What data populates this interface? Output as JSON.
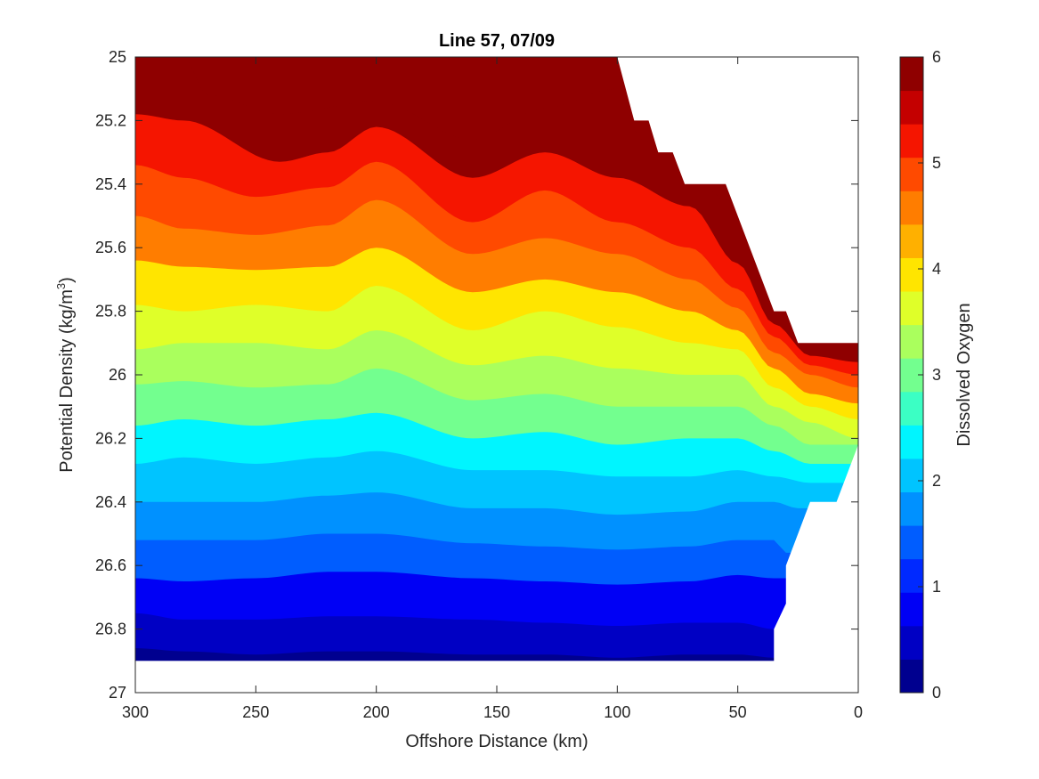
{
  "chart_data": {
    "type": "contourf",
    "title": "Line 57, 07/09",
    "xlabel": "Offshore Distance (km)",
    "ylabel_main": "Potential Density (kg/m",
    "ylabel_sup": "3",
    "ylabel_close": ")",
    "colorbar_label": "Dissolved Oxygen",
    "xlim": [
      300,
      0
    ],
    "x_reversed": true,
    "ylim": [
      25,
      27
    ],
    "y_reversed": true,
    "xticks": [
      300,
      250,
      200,
      150,
      100,
      50,
      0
    ],
    "xtick_labels": [
      "300",
      "250",
      "200",
      "150",
      "100",
      "50",
      "0"
    ],
    "yticks": [
      25,
      25.2,
      25.4,
      25.6,
      25.8,
      26,
      26.2,
      26.4,
      26.6,
      26.8,
      27
    ],
    "ytick_labels": [
      "25",
      "25.2",
      "25.4",
      "25.6",
      "25.8",
      "26",
      "26.2",
      "26.4",
      "26.6",
      "26.8",
      "27"
    ],
    "colorbar_range": [
      0,
      6
    ],
    "colorbar_ticks": [
      0,
      1,
      2,
      3,
      4,
      5,
      6
    ],
    "colorbar_tick_labels": [
      "0",
      "1",
      "2",
      "3",
      "4",
      "5",
      "6"
    ],
    "level_step": 0.4,
    "colormap": [
      "#00008f",
      "#0000c4",
      "#0000f5",
      "#0029ff",
      "#005dff",
      "#0091ff",
      "#00c4ff",
      "#00f5ff",
      "#3bffc4",
      "#73ff8f",
      "#aaff5d",
      "#dfff29",
      "#ffe500",
      "#ffb000",
      "#ff7d00",
      "#ff4a00",
      "#f51500",
      "#c40000",
      "#8f0000"
    ],
    "data_extent": {
      "x_range_km": [
        300,
        35
      ],
      "density_bottom": 26.9
    },
    "isopycnal_levels": [
      {
        "level": 5.6,
        "depth_at_x": [
          [
            300,
            25.0
          ],
          [
            280,
            25.0
          ],
          [
            270,
            25.12
          ],
          [
            240,
            25.18
          ],
          [
            200,
            25.14
          ],
          [
            160,
            25.26
          ],
          [
            130,
            25.16
          ],
          [
            100,
            25.1
          ],
          [
            90,
            25.26
          ],
          [
            70,
            25.36
          ],
          [
            55,
            25.45
          ]
        ]
      },
      {
        "level": 5.2,
        "depth_at_x": [
          [
            300,
            25.18
          ],
          [
            280,
            25.2
          ],
          [
            240,
            25.33
          ],
          [
            220,
            25.3
          ],
          [
            200,
            25.22
          ],
          [
            160,
            25.38
          ],
          [
            130,
            25.3
          ],
          [
            100,
            25.38
          ],
          [
            70,
            25.47
          ],
          [
            50,
            25.65
          ],
          [
            35,
            25.84
          ],
          [
            20,
            25.94
          ],
          [
            0,
            25.96
          ]
        ]
      },
      {
        "level": 4.8,
        "depth_at_x": [
          [
            300,
            25.34
          ],
          [
            280,
            25.38
          ],
          [
            250,
            25.44
          ],
          [
            220,
            25.41
          ],
          [
            200,
            25.33
          ],
          [
            160,
            25.52
          ],
          [
            130,
            25.42
          ],
          [
            100,
            25.52
          ],
          [
            70,
            25.6
          ],
          [
            50,
            25.73
          ],
          [
            35,
            25.88
          ],
          [
            20,
            25.97
          ],
          [
            0,
            26.0
          ]
        ]
      },
      {
        "level": 4.4,
        "depth_at_x": [
          [
            300,
            25.5
          ],
          [
            280,
            25.54
          ],
          [
            250,
            25.56
          ],
          [
            220,
            25.53
          ],
          [
            200,
            25.45
          ],
          [
            160,
            25.62
          ],
          [
            130,
            25.57
          ],
          [
            100,
            25.62
          ],
          [
            70,
            25.7
          ],
          [
            50,
            25.79
          ],
          [
            35,
            25.93
          ],
          [
            20,
            26.0
          ],
          [
            0,
            26.04
          ]
        ]
      },
      {
        "level": 4.0,
        "depth_at_x": [
          [
            300,
            25.64
          ],
          [
            280,
            25.66
          ],
          [
            250,
            25.67
          ],
          [
            220,
            25.66
          ],
          [
            200,
            25.6
          ],
          [
            160,
            25.74
          ],
          [
            130,
            25.7
          ],
          [
            100,
            25.74
          ],
          [
            70,
            25.8
          ],
          [
            50,
            25.86
          ],
          [
            35,
            25.98
          ],
          [
            20,
            26.06
          ],
          [
            0,
            26.09
          ]
        ]
      },
      {
        "level": 3.6,
        "depth_at_x": [
          [
            300,
            25.78
          ],
          [
            280,
            25.8
          ],
          [
            250,
            25.78
          ],
          [
            220,
            25.8
          ],
          [
            200,
            25.72
          ],
          [
            160,
            25.86
          ],
          [
            130,
            25.8
          ],
          [
            100,
            25.85
          ],
          [
            70,
            25.9
          ],
          [
            50,
            25.92
          ],
          [
            35,
            26.04
          ],
          [
            20,
            26.1
          ],
          [
            0,
            26.14
          ]
        ]
      },
      {
        "level": 3.2,
        "depth_at_x": [
          [
            300,
            25.92
          ],
          [
            280,
            25.9
          ],
          [
            250,
            25.9
          ],
          [
            220,
            25.92
          ],
          [
            200,
            25.86
          ],
          [
            160,
            25.97
          ],
          [
            130,
            25.94
          ],
          [
            100,
            25.98
          ],
          [
            70,
            26.0
          ],
          [
            50,
            26.0
          ],
          [
            35,
            26.1
          ],
          [
            20,
            26.15
          ],
          [
            0,
            26.2
          ]
        ]
      },
      {
        "level": 2.8,
        "depth_at_x": [
          [
            300,
            26.03
          ],
          [
            280,
            26.02
          ],
          [
            250,
            26.04
          ],
          [
            220,
            26.03
          ],
          [
            200,
            25.98
          ],
          [
            160,
            26.08
          ],
          [
            130,
            26.06
          ],
          [
            100,
            26.1
          ],
          [
            70,
            26.1
          ],
          [
            50,
            26.1
          ],
          [
            35,
            26.16
          ],
          [
            20,
            26.22
          ]
        ]
      },
      {
        "level": 2.4,
        "depth_at_x": [
          [
            300,
            26.16
          ],
          [
            280,
            26.14
          ],
          [
            250,
            26.16
          ],
          [
            220,
            26.14
          ],
          [
            200,
            26.12
          ],
          [
            160,
            26.2
          ],
          [
            130,
            26.18
          ],
          [
            100,
            26.22
          ],
          [
            70,
            26.2
          ],
          [
            50,
            26.2
          ],
          [
            35,
            26.24
          ],
          [
            20,
            26.28
          ]
        ]
      },
      {
        "level": 2.0,
        "depth_at_x": [
          [
            300,
            26.28
          ],
          [
            280,
            26.26
          ],
          [
            250,
            26.28
          ],
          [
            220,
            26.26
          ],
          [
            200,
            26.24
          ],
          [
            160,
            26.3
          ],
          [
            130,
            26.3
          ],
          [
            100,
            26.32
          ],
          [
            70,
            26.32
          ],
          [
            50,
            26.3
          ],
          [
            35,
            26.32
          ],
          [
            20,
            26.34
          ]
        ]
      },
      {
        "level": 1.6,
        "depth_at_x": [
          [
            300,
            26.4
          ],
          [
            280,
            26.4
          ],
          [
            250,
            26.4
          ],
          [
            220,
            26.38
          ],
          [
            200,
            26.37
          ],
          [
            160,
            26.42
          ],
          [
            130,
            26.42
          ],
          [
            100,
            26.44
          ],
          [
            70,
            26.43
          ],
          [
            50,
            26.4
          ],
          [
            35,
            26.4
          ],
          [
            25,
            26.42
          ]
        ]
      },
      {
        "level": 1.2,
        "depth_at_x": [
          [
            300,
            26.52
          ],
          [
            280,
            26.52
          ],
          [
            250,
            26.52
          ],
          [
            220,
            26.5
          ],
          [
            200,
            26.5
          ],
          [
            160,
            26.53
          ],
          [
            130,
            26.54
          ],
          [
            100,
            26.55
          ],
          [
            70,
            26.54
          ],
          [
            50,
            26.52
          ],
          [
            35,
            26.52
          ],
          [
            30,
            26.56
          ]
        ]
      },
      {
        "level": 0.8,
        "depth_at_x": [
          [
            300,
            26.64
          ],
          [
            280,
            26.65
          ],
          [
            250,
            26.64
          ],
          [
            220,
            26.62
          ],
          [
            200,
            26.62
          ],
          [
            160,
            26.64
          ],
          [
            130,
            26.65
          ],
          [
            100,
            26.66
          ],
          [
            70,
            26.65
          ],
          [
            50,
            26.63
          ],
          [
            35,
            26.64
          ]
        ]
      },
      {
        "level": 0.4,
        "depth_at_x": [
          [
            300,
            26.75
          ],
          [
            280,
            26.77
          ],
          [
            250,
            26.77
          ],
          [
            220,
            26.76
          ],
          [
            200,
            26.76
          ],
          [
            160,
            26.77
          ],
          [
            130,
            26.78
          ],
          [
            100,
            26.79
          ],
          [
            70,
            26.78
          ],
          [
            50,
            26.78
          ],
          [
            35,
            26.8
          ]
        ]
      },
      {
        "level": 0.0,
        "depth_at_x": [
          [
            300,
            26.86
          ],
          [
            280,
            26.87
          ],
          [
            250,
            26.88
          ],
          [
            220,
            26.87
          ],
          [
            200,
            26.87
          ],
          [
            160,
            26.88
          ],
          [
            130,
            26.88
          ],
          [
            100,
            26.89
          ],
          [
            70,
            26.88
          ],
          [
            50,
            26.88
          ],
          [
            35,
            26.89
          ]
        ]
      }
    ],
    "grid": false,
    "legend": "colorbar-right"
  }
}
